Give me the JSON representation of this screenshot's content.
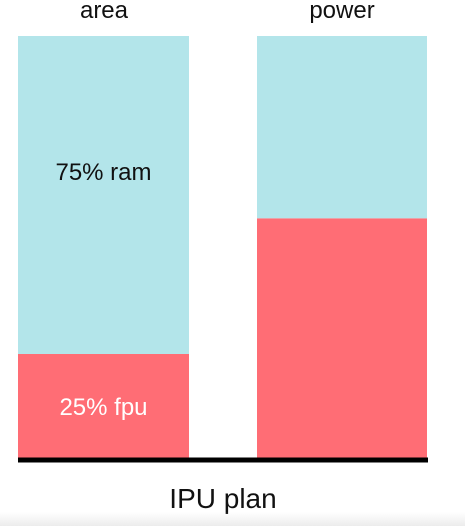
{
  "chart_data": {
    "type": "bar",
    "stacked": true,
    "normalized": true,
    "title": "IPU plan",
    "categories": [
      "area",
      "power"
    ],
    "ylim": [
      0,
      100
    ],
    "grid": false,
    "series": [
      {
        "name": "fpu",
        "color": "#ff6d75",
        "values": [
          25,
          57
        ],
        "labels": [
          "25% fpu",
          ""
        ]
      },
      {
        "name": "ram",
        "color": "#b3e5ea",
        "values": [
          75,
          43
        ],
        "labels": [
          "75% ram",
          ""
        ]
      }
    ],
    "baseline_color": "#000000"
  }
}
